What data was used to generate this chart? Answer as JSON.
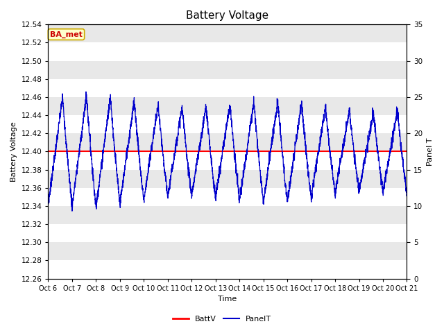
{
  "title": "Battery Voltage",
  "xlabel": "Time",
  "ylabel_left": "Battery Voltage",
  "ylabel_right": "Panel T",
  "ylim_left": [
    12.26,
    12.54
  ],
  "ylim_right": [
    0,
    35
  ],
  "batt_v_value": 12.4,
  "batt_v_color": "#ff0000",
  "panel_t_color": "#0000cc",
  "annotation_text": "BA_met",
  "annotation_bg": "#ffffcc",
  "annotation_border": "#ccaa00",
  "annotation_text_color": "#cc0000",
  "background_color": "#ffffff",
  "grid_band_color": "#e8e8e8",
  "title_fontsize": 11,
  "axis_fontsize": 8,
  "tick_fontsize": 7.5,
  "legend_fontsize": 8,
  "x_tick_labels": [
    "Oct 6",
    "Oct 7",
    "Oct 8",
    "Oct 9",
    "Oct 10",
    "Oct 11",
    "Oct 12",
    "Oct 13",
    "Oct 14",
    "Oct 15",
    "Oct 16",
    "Oct 17",
    "Oct 18",
    "Oct 19",
    "Oct 20",
    "Oct 21"
  ],
  "left_yticks": [
    12.26,
    12.28,
    12.3,
    12.32,
    12.34,
    12.36,
    12.38,
    12.4,
    12.42,
    12.44,
    12.46,
    12.48,
    12.5,
    12.52,
    12.54
  ],
  "right_yticks": [
    0,
    5,
    10,
    15,
    20,
    25,
    30,
    35
  ]
}
